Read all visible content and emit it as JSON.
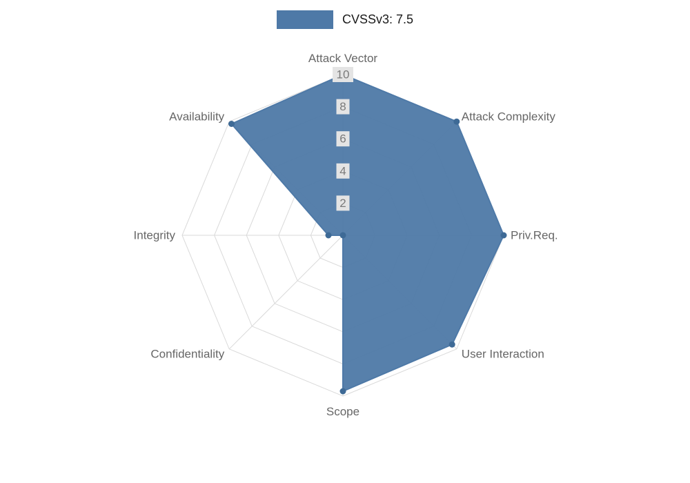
{
  "legend": {
    "label": "CVSSv3: 7.5",
    "swatch_color": "#4e79a7"
  },
  "chart_data": {
    "type": "radar",
    "title": "",
    "legend_position": "top",
    "grid": true,
    "categories": [
      "Attack Vector",
      "Attack Complexity",
      "Priv.Req.",
      "User Interaction",
      "Scope",
      "Confidentiality",
      "Integrity",
      "Availability"
    ],
    "series": [
      {
        "name": "CVSSv3: 7.5",
        "color": "#4e79a7",
        "values": [
          10,
          10,
          10,
          9.6,
          9.7,
          0,
          0.9,
          9.8
        ]
      }
    ],
    "rlim": [
      0,
      10
    ],
    "ticks": [
      2,
      4,
      6,
      8,
      10
    ],
    "colors": {
      "grid": "#d9d9d9",
      "tick_text": "#7a7a7a",
      "tick_backdrop": "#e4e4e4",
      "axis_label": "#666666",
      "marker": "#3e6a96"
    }
  }
}
